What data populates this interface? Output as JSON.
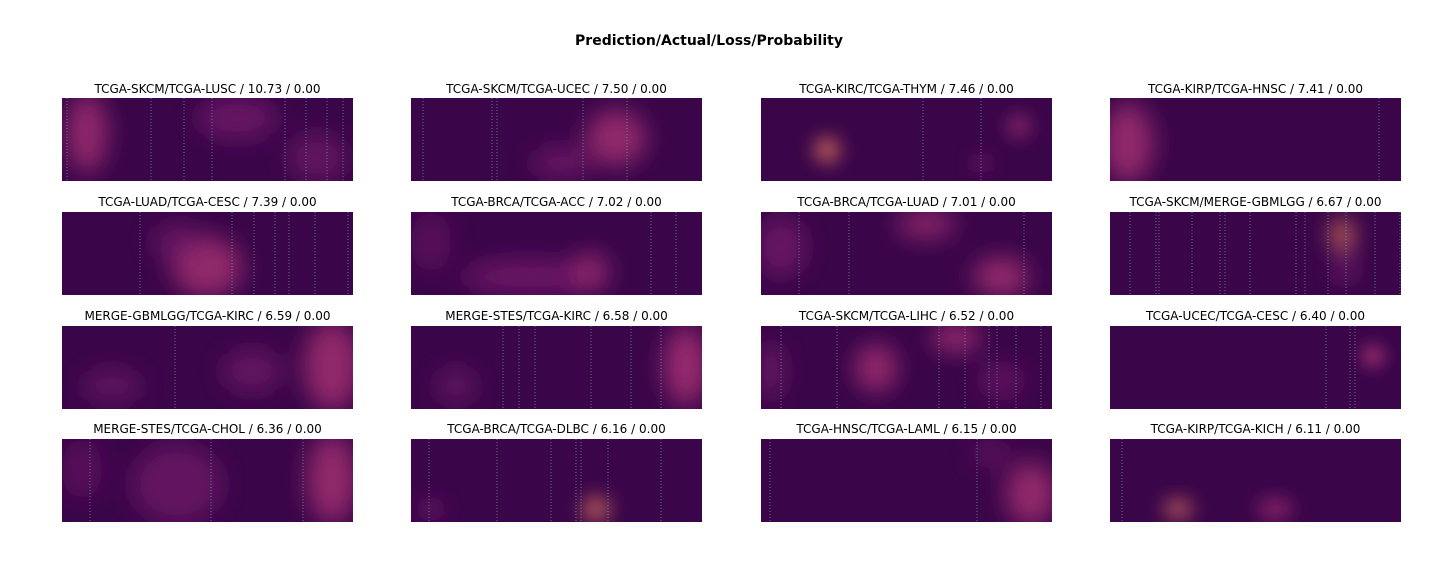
{
  "figure": {
    "suptitle": "Prediction/Actual/Loss/Probability",
    "colormap": "magma",
    "base_color": "#3a0549",
    "accent_colors": [
      "#7a1c6d",
      "#b73779",
      "#fc8961"
    ]
  },
  "chart_data": {
    "type": "heatmap",
    "layout": "4x4 grid",
    "panels": [
      {
        "title": "TCGA-SKCM/TCGA-LUSC / 10.73 / 0.00",
        "prediction": "TCGA-SKCM",
        "actual": "TCGA-LUSC",
        "loss": 10.73,
        "probability": 0.0
      },
      {
        "title": "TCGA-SKCM/TCGA-UCEC / 7.50 / 0.00",
        "prediction": "TCGA-SKCM",
        "actual": "TCGA-UCEC",
        "loss": 7.5,
        "probability": 0.0
      },
      {
        "title": "TCGA-KIRC/TCGA-THYM / 7.46 / 0.00",
        "prediction": "TCGA-KIRC",
        "actual": "TCGA-THYM",
        "loss": 7.46,
        "probability": 0.0
      },
      {
        "title": "TCGA-KIRP/TCGA-HNSC / 7.41 / 0.00",
        "prediction": "TCGA-KIRP",
        "actual": "TCGA-HNSC",
        "loss": 7.41,
        "probability": 0.0
      },
      {
        "title": "TCGA-LUAD/TCGA-CESC / 7.39 / 0.00",
        "prediction": "TCGA-LUAD",
        "actual": "TCGA-CESC",
        "loss": 7.39,
        "probability": 0.0
      },
      {
        "title": "TCGA-BRCA/TCGA-ACC / 7.02 / 0.00",
        "prediction": "TCGA-BRCA",
        "actual": "TCGA-ACC",
        "loss": 7.02,
        "probability": 0.0
      },
      {
        "title": "TCGA-BRCA/TCGA-LUAD / 7.01 / 0.00",
        "prediction": "TCGA-BRCA",
        "actual": "TCGA-LUAD",
        "loss": 7.01,
        "probability": 0.0
      },
      {
        "title": "TCGA-SKCM/MERGE-GBMLGG / 6.67 / 0.00",
        "prediction": "TCGA-SKCM",
        "actual": "MERGE-GBMLGG",
        "loss": 6.67,
        "probability": 0.0
      },
      {
        "title": "MERGE-GBMLGG/TCGA-KIRC / 6.59 / 0.00",
        "prediction": "MERGE-GBMLGG",
        "actual": "TCGA-KIRC",
        "loss": 6.59,
        "probability": 0.0
      },
      {
        "title": "MERGE-STES/TCGA-KIRC / 6.58 / 0.00",
        "prediction": "MERGE-STES",
        "actual": "TCGA-KIRC",
        "loss": 6.58,
        "probability": 0.0
      },
      {
        "title": "TCGA-SKCM/TCGA-LIHC / 6.52 / 0.00",
        "prediction": "TCGA-SKCM",
        "actual": "TCGA-LIHC",
        "loss": 6.52,
        "probability": 0.0
      },
      {
        "title": "TCGA-UCEC/TCGA-CESC / 6.40 / 0.00",
        "prediction": "TCGA-UCEC",
        "actual": "TCGA-CESC",
        "loss": 6.4,
        "probability": 0.0
      },
      {
        "title": "MERGE-STES/TCGA-CHOL / 6.36 / 0.00",
        "prediction": "MERGE-STES",
        "actual": "TCGA-CHOL",
        "loss": 6.36,
        "probability": 0.0
      },
      {
        "title": "TCGA-BRCA/TCGA-DLBC / 6.16 / 0.00",
        "prediction": "TCGA-BRCA",
        "actual": "TCGA-DLBC",
        "loss": 6.16,
        "probability": 0.0
      },
      {
        "title": "TCGA-HNSC/TCGA-LAML / 6.15 / 0.00",
        "prediction": "TCGA-HNSC",
        "actual": "TCGA-LAML",
        "loss": 6.15,
        "probability": 0.0
      },
      {
        "title": "TCGA-KIRP/TCGA-KICH / 6.11 / 0.00",
        "prediction": "TCGA-KIRP",
        "actual": "TCGA-KICH",
        "loss": 6.11,
        "probability": 0.0
      }
    ]
  }
}
